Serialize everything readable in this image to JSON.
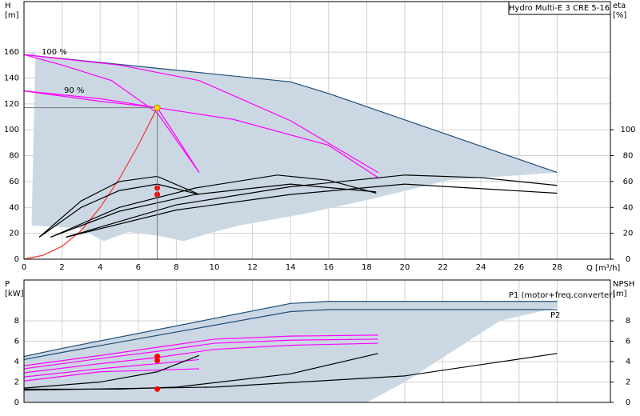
{
  "chart_data": [
    {
      "type": "line",
      "title": "Hydro Multi-E 3 CRE 5-16",
      "y_label": "H",
      "y_unit": "[m]",
      "y2_label": "eta",
      "y2_unit": "[%]",
      "x_label": "Q [m³/h]",
      "annotations": [
        "100 %",
        "90 %"
      ],
      "xlim": [
        0,
        30.8
      ],
      "ylim": [
        0,
        199
      ],
      "y2lim": [
        0,
        199
      ],
      "xticks": [
        0,
        2,
        4,
        6,
        8,
        10,
        12,
        14,
        16,
        18,
        20,
        22,
        24,
        26,
        28
      ],
      "yticks": [
        0,
        20,
        40,
        60,
        80,
        100,
        120,
        140,
        160
      ],
      "y2ticks": [
        0,
        20,
        40,
        60,
        80,
        100
      ],
      "grid": true,
      "series": [
        {
          "kind": "area",
          "color": "#cbd8e4",
          "x": [
            0,
            14,
            16,
            28,
            22.3,
            18.1,
            14.7,
            11.3,
            9.7,
            8.4,
            7.1,
            5.5,
            4.2,
            2.9,
            0.4,
            0.6
          ],
          "values": [
            158,
            137,
            128,
            67,
            61,
            46,
            35,
            26,
            20,
            14,
            18,
            21,
            14,
            24,
            26,
            160
          ]
        },
        {
          "kind": "line",
          "color": "#1f4e79",
          "x": [
            0,
            14,
            16,
            28
          ],
          "values": [
            158,
            137,
            128,
            67
          ]
        },
        {
          "kind": "line",
          "color": "#ff00ff",
          "x": [
            0,
            2,
            4.6,
            7,
            9.2
          ],
          "values": [
            158,
            150,
            138,
            113,
            67
          ]
        },
        {
          "kind": "line",
          "color": "#ff00ff",
          "x": [
            0,
            5,
            9.2,
            14,
            18.6
          ],
          "values": [
            158,
            150,
            138,
            107,
            67
          ]
        },
        {
          "kind": "line",
          "color": "#ff00ff",
          "x": [
            0,
            4,
            7,
            11,
            16,
            18.6
          ],
          "values": [
            130,
            122,
            117,
            108,
            88,
            63
          ]
        },
        {
          "kind": "line",
          "color": "#ff00ff",
          "x": [
            0,
            4,
            7,
            8.2,
            9.2
          ],
          "values": [
            130,
            124,
            117,
            90,
            67
          ]
        },
        {
          "kind": "line",
          "color": "#ff3030",
          "x": [
            0,
            1,
            2,
            3,
            4,
            5,
            6,
            7
          ],
          "values": [
            0,
            3,
            10,
            22,
            40,
            62,
            88,
            117
          ]
        },
        {
          "kind": "line",
          "axis": "y2",
          "color": "#000000",
          "x": [
            0.8,
            3,
            5,
            7,
            9.2
          ],
          "values": [
            17,
            45,
            60,
            64,
            50
          ]
        },
        {
          "kind": "line",
          "axis": "y2",
          "color": "#000000",
          "x": [
            0.8,
            3,
            5,
            7,
            9.2
          ],
          "values": [
            17,
            40,
            53,
            58,
            50
          ]
        },
        {
          "kind": "line",
          "axis": "y2",
          "color": "#000000",
          "x": [
            1.4,
            5,
            9,
            13.3,
            16,
            18.5
          ],
          "values": [
            17,
            40,
            55,
            65,
            61,
            51
          ]
        },
        {
          "kind": "line",
          "axis": "y2",
          "color": "#000000",
          "x": [
            1.4,
            5,
            9,
            14,
            18.5
          ],
          "values": [
            17,
            37,
            50,
            58,
            52
          ]
        },
        {
          "kind": "line",
          "axis": "y2",
          "color": "#000000",
          "x": [
            2.2,
            8,
            14,
            20,
            24,
            28
          ],
          "values": [
            17,
            42,
            56,
            65,
            63,
            57
          ]
        },
        {
          "kind": "line",
          "axis": "y2",
          "color": "#000000",
          "x": [
            2.2,
            8,
            14,
            20,
            28
          ],
          "values": [
            17,
            38,
            50,
            58,
            51
          ]
        },
        {
          "kind": "point",
          "color": "#ff0000",
          "x": [
            7,
            7
          ],
          "values": [
            55,
            50
          ]
        },
        {
          "kind": "point",
          "color": "#ffdd00",
          "x": [
            7
          ],
          "values": [
            117
          ]
        }
      ]
    },
    {
      "type": "line",
      "y_label": "P",
      "y_unit": "[kW]",
      "y2_label": "NPSH",
      "y2_unit": "[m]",
      "annotations": [
        "P1 (motor+freq.converter)",
        "P2"
      ],
      "xlim": [
        0,
        30.8
      ],
      "ylim": [
        0,
        12
      ],
      "y2lim": [
        0,
        12
      ],
      "xticks": [
        0,
        2,
        4,
        6,
        8,
        10,
        12,
        14,
        16,
        18,
        20,
        22,
        24,
        26,
        28
      ],
      "yticks": [
        0,
        2,
        4,
        6,
        8
      ],
      "y2ticks": [
        0,
        2,
        4,
        6,
        8
      ],
      "grid": true,
      "series": [
        {
          "kind": "area",
          "color": "#cbd8e4",
          "x": [
            0,
            2,
            14,
            16,
            28,
            28,
            25,
            22.5,
            20,
            18.5,
            18,
            0
          ],
          "values": [
            4.5,
            5.3,
            9.7,
            9.9,
            9.9,
            9.3,
            8,
            5,
            2,
            0.5,
            0,
            0
          ]
        },
        {
          "kind": "line",
          "color": "#1f4e79",
          "x": [
            0,
            2,
            14,
            16,
            28
          ],
          "values": [
            4.5,
            5.3,
            9.7,
            9.9,
            9.9
          ]
        },
        {
          "kind": "line",
          "color": "#1f4e79",
          "x": [
            0,
            2,
            14,
            16,
            28
          ],
          "values": [
            4.2,
            4.9,
            8.9,
            9.1,
            9.1
          ]
        },
        {
          "kind": "line",
          "color": "#ff00ff",
          "x": [
            0,
            4,
            7,
            10,
            14,
            18.6
          ],
          "values": [
            3.6,
            4.6,
            5.4,
            6.2,
            6.5,
            6.6
          ]
        },
        {
          "kind": "line",
          "color": "#ff00ff",
          "x": [
            0,
            4,
            7,
            10,
            14,
            18.6
          ],
          "values": [
            3.3,
            4.3,
            5.0,
            5.8,
            6.1,
            6.2
          ]
        },
        {
          "kind": "line",
          "color": "#ff00ff",
          "x": [
            0,
            4,
            7,
            10,
            14,
            18.6
          ],
          "values": [
            2.9,
            3.8,
            4.4,
            5.2,
            5.6,
            5.8
          ]
        },
        {
          "kind": "line",
          "color": "#ff00ff",
          "x": [
            0,
            4,
            7,
            9.2
          ],
          "values": [
            2.5,
            3.3,
            3.8,
            4.2
          ]
        },
        {
          "kind": "line",
          "color": "#ff00ff",
          "x": [
            0,
            4,
            9.2
          ],
          "values": [
            2.1,
            3.0,
            3.3
          ]
        },
        {
          "kind": "line",
          "axis": "y2",
          "color": "#000000",
          "x": [
            0,
            5,
            8,
            14,
            18.6
          ],
          "values": [
            1.3,
            1.3,
            1.5,
            2.8,
            4.8
          ]
        },
        {
          "kind": "line",
          "axis": "y2",
          "color": "#000000",
          "x": [
            0,
            10,
            20,
            28
          ],
          "values": [
            1.2,
            1.5,
            2.6,
            4.8
          ]
        },
        {
          "kind": "line",
          "axis": "y2",
          "color": "#000000",
          "x": [
            0,
            4,
            7,
            9.2
          ],
          "values": [
            1.4,
            2,
            3,
            4.6
          ]
        },
        {
          "kind": "point",
          "color": "#ff0000",
          "x": [
            7,
            7,
            7
          ],
          "values": [
            4.5,
            4.1,
            1.3
          ]
        }
      ]
    }
  ]
}
